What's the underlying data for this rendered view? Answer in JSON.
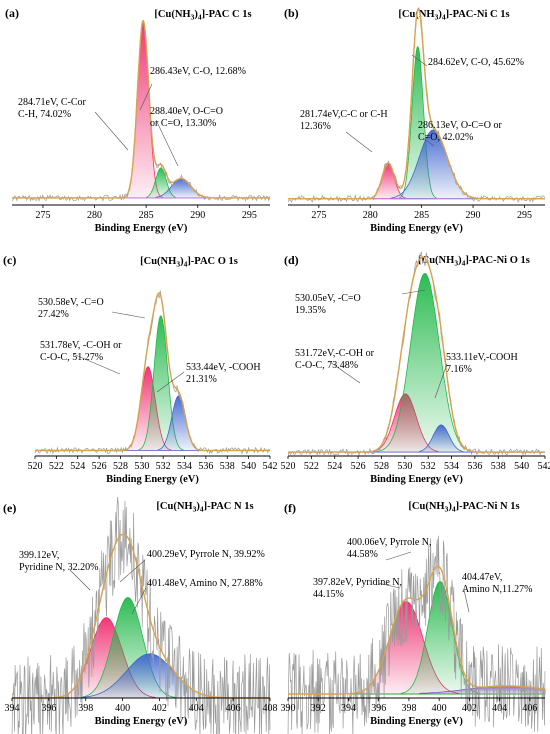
{
  "colors": {
    "envelope": "#d8a24e",
    "raw": "#9a9a9a",
    "baseline_c": "#c07be0",
    "baseline_o": "#7b7bd8",
    "baseline_n": "#2fa030",
    "pink": "#ef2d6e",
    "green": "#22b84a",
    "blue": "#3f65cf",
    "purple": "#7a52c9"
  },
  "chart_data": [
    {
      "panel": "(a)",
      "type": "area",
      "title": "[Cu(NH3)4]-PAC  C 1s",
      "title_parts": [
        "[Cu(NH",
        "3",
        ")",
        "4",
        "]-PAC  C 1s"
      ],
      "xlabel": "Binding Energy (eV)",
      "xlim": [
        272,
        297
      ],
      "xticks": [
        275,
        280,
        285,
        290,
        295
      ],
      "baseline": 0.04,
      "peaks": [
        {
          "center": 284.71,
          "height": 1.0,
          "fwhm": 1.3,
          "color": "pink",
          "label": [
            "284.71eV, C-Cor",
            "C-H, 74.02%"
          ]
        },
        {
          "center": 286.43,
          "height": 0.17,
          "fwhm": 1.2,
          "color": "green",
          "label": [
            "286.43eV, C-O, 12.68%"
          ]
        },
        {
          "center": 288.4,
          "height": 0.11,
          "fwhm": 2.2,
          "color": "blue",
          "label": [
            "288.40eV, O-C=O",
            "or C=O, 13.30%"
          ]
        }
      ]
    },
    {
      "panel": "(b)",
      "type": "area",
      "title": "[Cu(NH3)4]-PAC-Ni  C 1s",
      "title_parts": [
        "[Cu(NH",
        "3",
        ")",
        "4",
        "]-PAC-Ni  C 1s"
      ],
      "xlabel": "Binding Energy (eV)",
      "xlim": [
        272,
        297
      ],
      "xticks": [
        275,
        280,
        285,
        290,
        295
      ],
      "baseline": 0.03,
      "peaks": [
        {
          "center": 281.74,
          "height": 0.17,
          "fwhm": 1.4,
          "color": "pink",
          "label": [
            "281.74eV,C-C or C-H",
            "12.36%"
          ]
        },
        {
          "center": 284.62,
          "height": 0.73,
          "fwhm": 1.3,
          "color": "green",
          "label": [
            "284.62eV, C-O, 45.62%"
          ]
        },
        {
          "center": 286.13,
          "height": 0.33,
          "fwhm": 3.2,
          "color": "blue",
          "label": [
            "286.13eV, O-C=O or",
            "C=O, 42.02%"
          ]
        }
      ]
    },
    {
      "panel": "(c)",
      "type": "area",
      "title": "[Cu(NH3)4]-PAC  O 1s",
      "title_parts": [
        "[Cu(NH",
        "3",
        ")",
        "4",
        "]-PAC  O 1s"
      ],
      "xlabel": "Binding Energy (eV)",
      "xlim": [
        520,
        542
      ],
      "xticks": [
        520,
        522,
        524,
        526,
        528,
        530,
        532,
        534,
        536,
        538,
        540,
        542
      ],
      "baseline": 0.03,
      "peaks": [
        {
          "center": 530.58,
          "height": 0.46,
          "fwhm": 1.6,
          "color": "pink",
          "label": [
            "530.58eV, -C=O",
            "27.42%"
          ]
        },
        {
          "center": 531.78,
          "height": 0.74,
          "fwhm": 1.5,
          "color": "green",
          "label": [
            "531.78eV, -C-OH or",
            "C-O-C, 51.27%"
          ]
        },
        {
          "center": 533.44,
          "height": 0.3,
          "fwhm": 1.5,
          "color": "blue",
          "label": [
            "533.44eV, -COOH",
            "21.31%"
          ]
        }
      ]
    },
    {
      "panel": "(d)",
      "type": "area",
      "title": "[Cu(NH3)4]-PAC-Ni  O 1s",
      "title_parts": [
        "[Cu(NH",
        "3",
        ")",
        "4",
        "]-PAC-Ni  O 1s"
      ],
      "xlabel": "Binding Energy (eV)",
      "xlim": [
        520,
        542
      ],
      "xticks": [
        520,
        522,
        524,
        526,
        528,
        530,
        532,
        534,
        536,
        538,
        540,
        542
      ],
      "baseline": 0.02,
      "peaks": [
        {
          "center": 530.05,
          "height": 0.3,
          "fwhm": 2.2,
          "color": "pink",
          "label": [
            "530.05eV, -C=O",
            "19.35%"
          ]
        },
        {
          "center": 531.72,
          "height": 0.92,
          "fwhm": 2.9,
          "color": "green",
          "label": [
            "531.72eV,-C-OH or",
            "C-O-C, 73.48%"
          ]
        },
        {
          "center": 533.11,
          "height": 0.14,
          "fwhm": 1.6,
          "color": "blue",
          "label": [
            "533.11eV,-COOH",
            "7.16%"
          ]
        }
      ]
    },
    {
      "panel": "(e)",
      "type": "area",
      "title": "[Cu(NH3)4]-PAC  N 1s",
      "title_parts": [
        "[Cu(NH",
        "3",
        ")",
        "4",
        "]-PAC  N 1s"
      ],
      "xlabel": "Binding Energy (eV)",
      "xlim": [
        394,
        408
      ],
      "xticks": [
        394,
        396,
        398,
        400,
        402,
        404,
        406,
        408
      ],
      "baseline": 0.0,
      "peaks": [
        {
          "center": 399.12,
          "height": 0.4,
          "fwhm": 2.0,
          "color": "pink",
          "label": [
            "399.12eV,",
            "Pyridine N, 32.20%"
          ]
        },
        {
          "center": 400.29,
          "height": 0.5,
          "fwhm": 1.9,
          "color": "green",
          "label": [
            "400.29eV, Pyrrole N, 39.92%"
          ]
        },
        {
          "center": 401.48,
          "height": 0.22,
          "fwhm": 3.0,
          "color": "blue",
          "label": [
            "401.48eV, Amino N, 27.88%"
          ]
        }
      ]
    },
    {
      "panel": "(f)",
      "type": "area",
      "title": "[Cu(NH3)4]-PAC-Ni  N 1s",
      "title_parts": [
        "[Cu(NH",
        "3",
        ")",
        "4",
        "]-PAC-Ni  N 1s"
      ],
      "xlabel": "Binding Energy (eV)",
      "xlim": [
        390,
        407
      ],
      "xticks": [
        390,
        392,
        394,
        396,
        398,
        400,
        402,
        404,
        406
      ],
      "baseline": 0.02,
      "peaks": [
        {
          "center": 397.82,
          "height": 0.46,
          "fwhm": 2.6,
          "color": "pink",
          "label": [
            "397.82eV, Pyridine N,",
            "44.15%"
          ]
        },
        {
          "center": 400.06,
          "height": 0.56,
          "fwhm": 1.9,
          "color": "green",
          "label": [
            "400.06eV, Pyrrole N,",
            "44.58%"
          ]
        },
        {
          "center": 404.47,
          "height": 0.04,
          "fwhm": 6.0,
          "color": "purple",
          "label": [
            "404.47eV,",
            "Amino N,11.27%"
          ]
        }
      ]
    }
  ]
}
